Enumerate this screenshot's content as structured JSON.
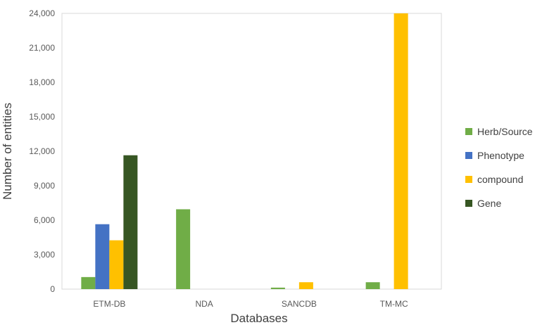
{
  "chart_data": {
    "type": "bar",
    "title": "",
    "xlabel": "Databases",
    "ylabel": "Number of entities",
    "categories": [
      "ETM-DB",
      "NDA",
      "SANCDB",
      "TM-MC"
    ],
    "series": [
      {
        "name": "Herb/Source",
        "color": "#70ad47",
        "values": [
          1050,
          6950,
          130,
          600
        ]
      },
      {
        "name": "Phenotype",
        "color": "#4472c4",
        "values": [
          5650,
          0,
          0,
          0
        ]
      },
      {
        "name": "compound",
        "color": "#ffc000",
        "values": [
          4250,
          0,
          600,
          24000
        ]
      },
      {
        "name": "Gene",
        "color": "#375623",
        "values": [
          11650,
          0,
          0,
          0
        ]
      }
    ],
    "ylim": [
      0,
      24000
    ],
    "yticks": [
      "0",
      "3,000",
      "6,000",
      "9,000",
      "12,000",
      "15,000",
      "18,000",
      "21,000",
      "24,000"
    ],
    "grid": false,
    "legend_position": "right"
  }
}
